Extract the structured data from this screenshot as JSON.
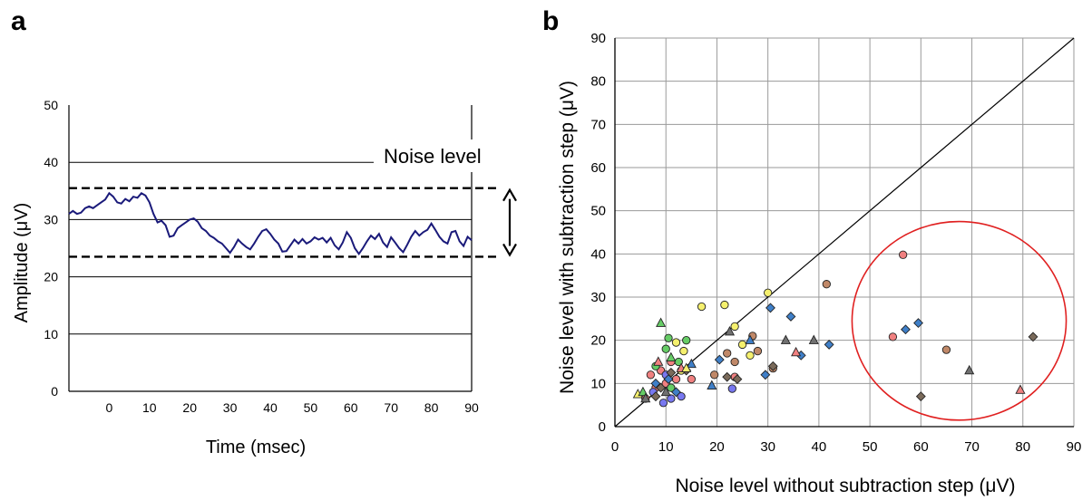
{
  "panels": {
    "a_label": "a",
    "b_label": "b"
  },
  "chart_data": [
    {
      "type": "line",
      "panel": "a",
      "title": "",
      "xlabel": "Time (msec)",
      "ylabel": "Amplitude (μV)",
      "xlim": [
        -10,
        90
      ],
      "ylim": [
        0,
        50
      ],
      "x_ticks": [
        0,
        10,
        20,
        30,
        40,
        50,
        60,
        70,
        80,
        90
      ],
      "y_ticks": [
        0,
        10,
        20,
        30,
        40,
        50
      ],
      "grid": "horizontal",
      "annotation": "Noise level",
      "noise_band": {
        "upper": 35.5,
        "lower": 23.5
      },
      "series": [
        {
          "color": "#1a1a7a",
          "x": [
            -10,
            -9,
            -8,
            -7,
            -6,
            -5,
            -4,
            -3,
            -2,
            -1,
            0,
            1,
            2,
            3,
            4,
            5,
            6,
            7,
            8,
            9,
            10,
            11,
            12,
            13,
            14,
            15,
            16,
            17,
            18,
            19,
            20,
            21,
            22,
            23,
            24,
            25,
            26,
            27,
            28,
            29,
            30,
            31,
            32,
            33,
            34,
            35,
            36,
            37,
            38,
            39,
            40,
            41,
            42,
            43,
            44,
            45,
            46,
            47,
            48,
            49,
            50,
            51,
            52,
            53,
            54,
            55,
            56,
            57,
            58,
            59,
            60,
            61,
            62,
            63,
            64,
            65,
            66,
            67,
            68,
            69,
            70,
            71,
            72,
            73,
            74,
            75,
            76,
            77,
            78,
            79,
            80,
            81,
            82,
            83,
            84,
            85,
            86,
            87,
            88,
            89,
            90
          ],
          "y": [
            31,
            31.5,
            31,
            31.2,
            32,
            32.3,
            32,
            32.5,
            33,
            33.5,
            34.6,
            34,
            33,
            32.8,
            33.6,
            33.2,
            34,
            33.8,
            34.6,
            34.2,
            33,
            31,
            29.5,
            29.8,
            29,
            27,
            27.2,
            28.5,
            29,
            29.5,
            30,
            30.2,
            29.6,
            28.5,
            28,
            27.2,
            26.8,
            26.2,
            25.8,
            25,
            24.2,
            25.2,
            26.5,
            25.8,
            25.2,
            24.8,
            25.8,
            27,
            28,
            28.3,
            27.5,
            26.5,
            25.8,
            24.4,
            24.5,
            25.5,
            26.5,
            25.8,
            26.6,
            25.8,
            26.2,
            26.9,
            26.5,
            26.8,
            26,
            26.8,
            25.5,
            24.8,
            26,
            27.8,
            26.8,
            25,
            24,
            25,
            26.2,
            27.2,
            26.6,
            27.5,
            26,
            25.2,
            26.9,
            26,
            25,
            24.3,
            25.6,
            27,
            28,
            27.2,
            27.8,
            28.2,
            29.3,
            28.2,
            27,
            26.2,
            25.8,
            27.8,
            28,
            26.2,
            25.4,
            27,
            26.4
          ]
        }
      ]
    },
    {
      "type": "scatter",
      "panel": "b",
      "title": "",
      "xlabel": "Noise level without subtraction step (μV)",
      "ylabel": "Noise level with  subtraction step (μV)",
      "xlim": [
        0,
        90
      ],
      "ylim": [
        0,
        90
      ],
      "x_ticks": [
        0,
        10,
        20,
        30,
        40,
        50,
        60,
        70,
        80,
        90
      ],
      "y_ticks": [
        0,
        10,
        20,
        30,
        40,
        50,
        60,
        70,
        80,
        90
      ],
      "grid": true,
      "identity_line": true,
      "highlight_circle": {
        "cx": 67.5,
        "cy": 24.5,
        "rx": 21,
        "ry": 23,
        "color": "#e02020"
      },
      "points": [
        {
          "x": 6,
          "y": 6.5,
          "shape": "circle",
          "color": "#f08080"
        },
        {
          "x": 7,
          "y": 12,
          "shape": "circle",
          "color": "#f08080"
        },
        {
          "x": 8,
          "y": 9,
          "shape": "circle",
          "color": "#f08080"
        },
        {
          "x": 9,
          "y": 13,
          "shape": "circle",
          "color": "#f08080"
        },
        {
          "x": 10,
          "y": 10,
          "shape": "circle",
          "color": "#f08080"
        },
        {
          "x": 11,
          "y": 15,
          "shape": "circle",
          "color": "#f08080"
        },
        {
          "x": 12,
          "y": 11,
          "shape": "circle",
          "color": "#f08080"
        },
        {
          "x": 15,
          "y": 11,
          "shape": "circle",
          "color": "#f08080"
        },
        {
          "x": 23.5,
          "y": 11.5,
          "shape": "circle",
          "color": "#f08080"
        },
        {
          "x": 54.5,
          "y": 20.8,
          "shape": "circle",
          "color": "#f08080"
        },
        {
          "x": 56.5,
          "y": 39.8,
          "shape": "circle",
          "color": "#f08080"
        },
        {
          "x": 7.5,
          "y": 8,
          "shape": "circle",
          "color": "#7878f0"
        },
        {
          "x": 9.5,
          "y": 5.5,
          "shape": "circle",
          "color": "#7878f0"
        },
        {
          "x": 11,
          "y": 6.5,
          "shape": "circle",
          "color": "#7878f0"
        },
        {
          "x": 13,
          "y": 7,
          "shape": "circle",
          "color": "#7878f0"
        },
        {
          "x": 10,
          "y": 12,
          "shape": "circle",
          "color": "#7878f0"
        },
        {
          "x": 23,
          "y": 8.8,
          "shape": "circle",
          "color": "#7878f0"
        },
        {
          "x": 8,
          "y": 14,
          "shape": "circle",
          "color": "#66cc66"
        },
        {
          "x": 10,
          "y": 18,
          "shape": "circle",
          "color": "#66cc66"
        },
        {
          "x": 10.5,
          "y": 20.5,
          "shape": "circle",
          "color": "#66cc66"
        },
        {
          "x": 12.5,
          "y": 15,
          "shape": "circle",
          "color": "#66cc66"
        },
        {
          "x": 14,
          "y": 20,
          "shape": "circle",
          "color": "#66cc66"
        },
        {
          "x": 11,
          "y": 9,
          "shape": "circle",
          "color": "#66cc66"
        },
        {
          "x": 12,
          "y": 19.5,
          "shape": "circle",
          "color": "#f5f06e"
        },
        {
          "x": 13,
          "y": 13,
          "shape": "circle",
          "color": "#f5f06e"
        },
        {
          "x": 17,
          "y": 27.8,
          "shape": "circle",
          "color": "#f5f06e"
        },
        {
          "x": 21.5,
          "y": 28.2,
          "shape": "circle",
          "color": "#f5f06e"
        },
        {
          "x": 23.5,
          "y": 23.2,
          "shape": "circle",
          "color": "#f5f06e"
        },
        {
          "x": 25,
          "y": 19,
          "shape": "circle",
          "color": "#f5f06e"
        },
        {
          "x": 26.5,
          "y": 16.5,
          "shape": "circle",
          "color": "#f5f06e"
        },
        {
          "x": 30,
          "y": 31,
          "shape": "circle",
          "color": "#f5f06e"
        },
        {
          "x": 13.5,
          "y": 17.5,
          "shape": "circle",
          "color": "#f5f06e"
        },
        {
          "x": 19.5,
          "y": 12,
          "shape": "circle",
          "color": "#c08868"
        },
        {
          "x": 22,
          "y": 17,
          "shape": "circle",
          "color": "#c08868"
        },
        {
          "x": 23.5,
          "y": 15,
          "shape": "circle",
          "color": "#c08868"
        },
        {
          "x": 27,
          "y": 21,
          "shape": "circle",
          "color": "#c08868"
        },
        {
          "x": 28,
          "y": 17.5,
          "shape": "circle",
          "color": "#c08868"
        },
        {
          "x": 31,
          "y": 13.5,
          "shape": "circle",
          "color": "#c08868"
        },
        {
          "x": 41.5,
          "y": 33,
          "shape": "circle",
          "color": "#c08868"
        },
        {
          "x": 65,
          "y": 17.8,
          "shape": "circle",
          "color": "#c08868"
        },
        {
          "x": 8,
          "y": 10,
          "shape": "diamond",
          "color": "#3f7fc8"
        },
        {
          "x": 10.5,
          "y": 11,
          "shape": "diamond",
          "color": "#3f7fc8"
        },
        {
          "x": 12,
          "y": 8,
          "shape": "diamond",
          "color": "#3f7fc8"
        },
        {
          "x": 20.5,
          "y": 15.5,
          "shape": "diamond",
          "color": "#3f7fc8"
        },
        {
          "x": 29.5,
          "y": 12,
          "shape": "diamond",
          "color": "#3f7fc8"
        },
        {
          "x": 30.5,
          "y": 27.5,
          "shape": "diamond",
          "color": "#3f7fc8"
        },
        {
          "x": 34.5,
          "y": 25.5,
          "shape": "diamond",
          "color": "#3f7fc8"
        },
        {
          "x": 36.5,
          "y": 16.5,
          "shape": "diamond",
          "color": "#3f7fc8"
        },
        {
          "x": 42,
          "y": 19,
          "shape": "diamond",
          "color": "#3f7fc8"
        },
        {
          "x": 57,
          "y": 22.5,
          "shape": "diamond",
          "color": "#3f7fc8"
        },
        {
          "x": 59.5,
          "y": 24,
          "shape": "diamond",
          "color": "#3f7fc8"
        },
        {
          "x": 8,
          "y": 7,
          "shape": "diamond",
          "color": "#7a6a5a"
        },
        {
          "x": 9,
          "y": 9,
          "shape": "diamond",
          "color": "#7a6a5a"
        },
        {
          "x": 11,
          "y": 12.5,
          "shape": "diamond",
          "color": "#7a6a5a"
        },
        {
          "x": 14,
          "y": 13,
          "shape": "diamond",
          "color": "#7a6a5a"
        },
        {
          "x": 22,
          "y": 11.5,
          "shape": "diamond",
          "color": "#7a6a5a"
        },
        {
          "x": 24,
          "y": 11,
          "shape": "diamond",
          "color": "#7a6a5a"
        },
        {
          "x": 31,
          "y": 14,
          "shape": "diamond",
          "color": "#7a6a5a"
        },
        {
          "x": 60,
          "y": 7,
          "shape": "diamond",
          "color": "#7a6a5a"
        },
        {
          "x": 82,
          "y": 20.8,
          "shape": "diamond",
          "color": "#7a6a5a"
        },
        {
          "x": 4.5,
          "y": 7.5,
          "shape": "triangle",
          "color": "#f5f06e"
        },
        {
          "x": 5.5,
          "y": 8,
          "shape": "triangle",
          "color": "#66cc66"
        },
        {
          "x": 9,
          "y": 24,
          "shape": "triangle",
          "color": "#66cc66"
        },
        {
          "x": 11,
          "y": 16,
          "shape": "triangle",
          "color": "#66cc66"
        },
        {
          "x": 6,
          "y": 6.5,
          "shape": "triangle",
          "color": "#707070"
        },
        {
          "x": 10,
          "y": 8,
          "shape": "triangle",
          "color": "#707070"
        },
        {
          "x": 22.5,
          "y": 22,
          "shape": "triangle",
          "color": "#707070"
        },
        {
          "x": 33.5,
          "y": 20,
          "shape": "triangle",
          "color": "#707070"
        },
        {
          "x": 39,
          "y": 20,
          "shape": "triangle",
          "color": "#707070"
        },
        {
          "x": 69.5,
          "y": 13,
          "shape": "triangle",
          "color": "#707070"
        },
        {
          "x": 8.5,
          "y": 15,
          "shape": "triangle",
          "color": "#f08080"
        },
        {
          "x": 13,
          "y": 13.5,
          "shape": "triangle",
          "color": "#f08080"
        },
        {
          "x": 35.5,
          "y": 17.2,
          "shape": "triangle",
          "color": "#f08080"
        },
        {
          "x": 79.5,
          "y": 8.5,
          "shape": "triangle",
          "color": "#f08080"
        },
        {
          "x": 26.5,
          "y": 20,
          "shape": "triangle",
          "color": "#3f7fc8"
        },
        {
          "x": 19,
          "y": 9.5,
          "shape": "triangle",
          "color": "#3f7fc8"
        },
        {
          "x": 15,
          "y": 14.5,
          "shape": "triangle",
          "color": "#3f7fc8"
        },
        {
          "x": 14,
          "y": 13.5,
          "shape": "triangle",
          "color": "#f5f06e"
        }
      ]
    }
  ]
}
